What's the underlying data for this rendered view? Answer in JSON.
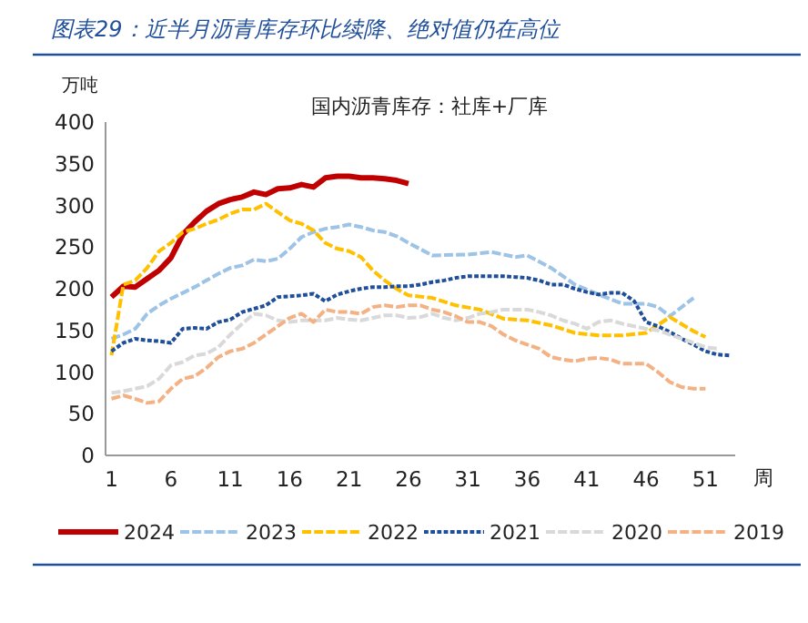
{
  "chart_data": {
    "type": "line",
    "title": "图表29：近半月沥青库存环比续降、绝对值仍在高位",
    "subtitle": "国内沥青库存：社库+厂库",
    "ylabel": "万吨",
    "xlabel": "周",
    "xlim": [
      0.5,
      53.5
    ],
    "xticks": [
      1,
      6,
      11,
      16,
      21,
      26,
      31,
      36,
      41,
      46,
      51
    ],
    "ylim": [
      0,
      400
    ],
    "yticks": [
      0,
      50,
      100,
      150,
      200,
      250,
      300,
      350,
      400
    ],
    "grid": false,
    "legend": "bottom",
    "marker": "none",
    "series": [
      {
        "name": "2024",
        "color": "#c00000",
        "line_style": "solid",
        "x": [
          1,
          2,
          3,
          4,
          5,
          6,
          7,
          8,
          9,
          10,
          11,
          12,
          13,
          14,
          15,
          16,
          17,
          18,
          19,
          20,
          21,
          22,
          23,
          24,
          25,
          26
        ],
        "values": [
          190,
          203,
          202,
          212,
          222,
          237,
          265,
          280,
          293,
          302,
          307,
          310,
          316,
          313,
          320,
          321,
          325,
          322,
          333,
          335,
          335,
          333,
          333,
          332,
          330,
          326
        ]
      },
      {
        "name": "2023",
        "color": "#9dc3e6",
        "line_style": "dashed",
        "x": [
          1,
          2,
          3,
          4,
          5,
          6,
          7,
          8,
          9,
          10,
          11,
          12,
          13,
          14,
          15,
          16,
          17,
          18,
          19,
          20,
          21,
          22,
          23,
          24,
          25,
          26,
          28,
          31,
          33,
          35,
          36,
          38,
          40,
          42,
          44,
          46,
          47,
          48,
          50
        ],
        "values": [
          140,
          145,
          152,
          170,
          180,
          188,
          195,
          202,
          210,
          218,
          225,
          228,
          235,
          233,
          236,
          248,
          262,
          268,
          272,
          274,
          277,
          274,
          270,
          268,
          263,
          255,
          240,
          241,
          244,
          238,
          240,
          225,
          205,
          193,
          182,
          182,
          178,
          167,
          189
        ]
      },
      {
        "name": "2022",
        "color": "#ffc000",
        "line_style": "dashed",
        "x": [
          1,
          2,
          3,
          4,
          5,
          6,
          7,
          8,
          9,
          10,
          11,
          12,
          13,
          14,
          15,
          16,
          17,
          18,
          19,
          20,
          21,
          22,
          23,
          24,
          25,
          26,
          28,
          30,
          32,
          34,
          36,
          38,
          40,
          42,
          44,
          46,
          48,
          50,
          51
        ],
        "values": [
          120,
          205,
          210,
          225,
          245,
          255,
          268,
          272,
          278,
          283,
          290,
          295,
          295,
          302,
          292,
          282,
          278,
          270,
          255,
          248,
          245,
          238,
          222,
          210,
          200,
          192,
          189,
          180,
          175,
          164,
          162,
          156,
          147,
          144,
          144,
          147,
          166,
          149,
          142
        ]
      },
      {
        "name": "2021",
        "color": "#1f4e9a",
        "line_style": "dotted",
        "x": [
          1,
          2,
          3,
          4,
          5,
          6,
          7,
          8,
          9,
          10,
          11,
          12,
          13,
          14,
          15,
          16,
          17,
          18,
          19,
          20,
          21,
          22,
          23,
          24,
          25,
          26,
          27,
          28,
          29,
          30,
          31,
          32,
          33,
          34,
          35,
          36,
          37,
          38,
          39,
          40,
          41,
          42,
          43,
          44,
          45,
          46,
          47,
          48,
          49,
          50,
          51,
          52,
          53
        ],
        "values": [
          125,
          135,
          140,
          138,
          137,
          135,
          152,
          153,
          152,
          160,
          163,
          172,
          176,
          180,
          190,
          191,
          192,
          194,
          185,
          193,
          197,
          200,
          202,
          202,
          203,
          203,
          205,
          208,
          210,
          213,
          215,
          215,
          215,
          215,
          214,
          213,
          210,
          205,
          205,
          200,
          196,
          193,
          195,
          195,
          185,
          160,
          155,
          148,
          140,
          133,
          125,
          121,
          120
        ]
      },
      {
        "name": "2020",
        "color": "#d9d9d9",
        "line_style": "dashed",
        "x": [
          1,
          2,
          3,
          4,
          5,
          6,
          7,
          8,
          9,
          10,
          11,
          12,
          13,
          14,
          15,
          16,
          17,
          18,
          19,
          20,
          21,
          22,
          23,
          24,
          25,
          26,
          27,
          28,
          29,
          30,
          31,
          32,
          33,
          34,
          35,
          36,
          37,
          38,
          39,
          40,
          41,
          42,
          43,
          44,
          45,
          46,
          47,
          48,
          49,
          50,
          51,
          52
        ],
        "values": [
          75,
          77,
          80,
          83,
          92,
          108,
          112,
          120,
          122,
          130,
          145,
          158,
          170,
          168,
          162,
          160,
          162,
          162,
          162,
          165,
          163,
          162,
          165,
          168,
          168,
          165,
          166,
          170,
          165,
          162,
          165,
          170,
          172,
          175,
          175,
          175,
          172,
          168,
          162,
          158,
          152,
          160,
          162,
          158,
          155,
          152,
          150,
          145,
          140,
          135,
          130,
          128
        ]
      },
      {
        "name": "2019",
        "color": "#f4b183",
        "line_style": "dashed",
        "x": [
          1,
          2,
          3,
          4,
          5,
          6,
          7,
          8,
          9,
          10,
          11,
          12,
          13,
          14,
          15,
          16,
          17,
          18,
          19,
          20,
          21,
          22,
          23,
          24,
          25,
          26,
          27,
          28,
          29,
          30,
          31,
          32,
          33,
          34,
          35,
          36,
          37,
          38,
          39,
          40,
          41,
          42,
          43,
          44,
          45,
          46,
          47,
          48,
          49,
          50,
          51
        ],
        "values": [
          68,
          72,
          68,
          63,
          65,
          80,
          92,
          95,
          105,
          118,
          125,
          128,
          135,
          145,
          155,
          165,
          170,
          160,
          175,
          172,
          172,
          170,
          178,
          180,
          178,
          180,
          180,
          175,
          172,
          167,
          160,
          160,
          155,
          145,
          138,
          133,
          128,
          118,
          115,
          113,
          116,
          117,
          115,
          110,
          110,
          110,
          100,
          88,
          82,
          80,
          80
        ]
      }
    ]
  }
}
